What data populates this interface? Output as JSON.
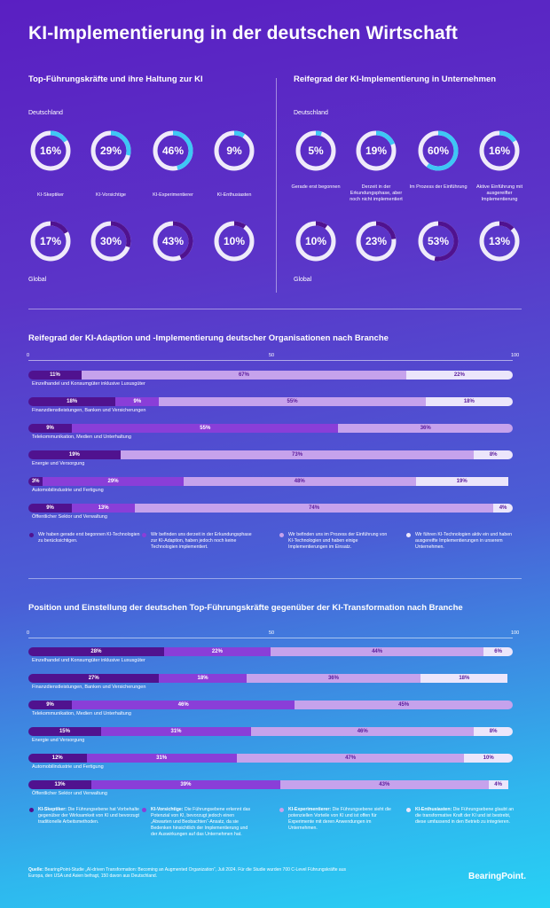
{
  "title": "KI-Implementierung in der deutschen Wirtschaft",
  "section1": {
    "heading": "Top-Führungskräfte und ihre Haltung zur KI",
    "label_de": "Deutschland",
    "label_global": "Global",
    "categories": [
      "KI-Skeptiker",
      "KI-Vorsichtige",
      "KI-Experimentierer",
      "KI-Enthusiasten"
    ],
    "deutschland": [
      16,
      29,
      46,
      9
    ],
    "deutschland_text": [
      "16%",
      "29%",
      "46%",
      "9%"
    ],
    "global": [
      17,
      30,
      43,
      10
    ],
    "global_text": [
      "17%",
      "30%",
      "43%",
      "10%"
    ]
  },
  "section2": {
    "heading": "Reifegrad der KI-Implementierung in Unternehmen",
    "label_de": "Deutschland",
    "label_global": "Global",
    "categories": [
      "Gerade erst begonnen",
      "Derzeit in der Erkundungsphase, aber noch nicht implementiert",
      "Im Prozess der Einführung",
      "Aktive Einführung mit ausgereifter Implementierung"
    ],
    "deutschland": [
      5,
      19,
      60,
      16
    ],
    "deutschland_text": [
      "5%",
      "19%",
      "60%",
      "16%"
    ],
    "global": [
      10,
      23,
      53,
      13
    ],
    "global_text": [
      "10%",
      "23%",
      "53%",
      "13%"
    ]
  },
  "chart_data": [
    {
      "type": "bar",
      "orientation": "horizontal-stacked",
      "title": "Reifegrad der KI-Adaption und -Implementierung deutscher Organisationen nach Branche",
      "axis_ticks": [
        "0",
        "50",
        "100"
      ],
      "xlim": [
        0,
        100
      ],
      "categories": [
        "Einzelhandel und Konsumgüter inklusive Luxusgüter",
        "Finanzdienstleistungen, Banken und Versicherungen",
        "Telekommunikation, Medien und Unterhaltung",
        "Energie und Versorgung",
        "Automobilindustrie und Fertigung",
        "Öffentlicher Sektor und Verwaltung"
      ],
      "series": [
        {
          "name": "Wir haben gerade erst begonnen KI-Technologien zu berücksichtigen.",
          "values": [
            11,
            18,
            9,
            19,
            3,
            9
          ],
          "labels": [
            "11%",
            "18%",
            "9%",
            "19%",
            "3%",
            "9%"
          ]
        },
        {
          "name": "Wir befinden uns derzeit in der Erkundungsphase zur KI-Adaption, haben jedoch noch keine Technologien implementiert.",
          "values": [
            0,
            9,
            55,
            0,
            29,
            13
          ],
          "labels": [
            "",
            "9%",
            "55%",
            "",
            "29%",
            "13%"
          ]
        },
        {
          "name": "Wir befinden uns im Prozess der Einführung von KI-Technologien und haben einige Implementierungen im Einsatz.",
          "values": [
            67,
            55,
            36,
            73,
            48,
            74
          ],
          "labels": [
            "67%",
            "55%",
            "36%",
            "73%",
            "48%",
            "74%"
          ]
        },
        {
          "name": "Wir führen KI-Technologien aktiv ein und haben ausgereifte Implementierungen in unserem Unternehmen.",
          "values": [
            22,
            18,
            0,
            8,
            19,
            4
          ],
          "labels": [
            "22%",
            "18%",
            "",
            "8%",
            "19%",
            "4%"
          ]
        }
      ],
      "colors": [
        "#50128f",
        "#8a3ed8",
        "#c6a2ec",
        "#ece6fb"
      ]
    },
    {
      "type": "bar",
      "orientation": "horizontal-stacked",
      "title": "Position und Einstellung der deutschen Top-Führungskräfte gegenüber der KI-Transformation nach Branche",
      "axis_ticks": [
        "0",
        "50",
        "100"
      ],
      "xlim": [
        0,
        100
      ],
      "categories": [
        "Einzelhandel und Konsumgüter inklusive Luxusgüter",
        "Finanzdienstleistungen, Banken und Versicherungen",
        "Telekommunikation, Medien und Unterhaltung",
        "Energie und Versorgung",
        "Automobilindustrie und Fertigung",
        "Öffentlicher Sektor und Verwaltung"
      ],
      "series": [
        {
          "name": "KI-Skeptiker",
          "values": [
            28,
            27,
            9,
            15,
            12,
            13
          ],
          "labels": [
            "28%",
            "27%",
            "9%",
            "15%",
            "12%",
            "13%"
          ]
        },
        {
          "name": "KI-Vorsichtige",
          "values": [
            22,
            18,
            46,
            31,
            31,
            39
          ],
          "labels": [
            "22%",
            "18%",
            "46%",
            "31%",
            "31%",
            "39%"
          ]
        },
        {
          "name": "KI-Experimentierer",
          "values": [
            44,
            36,
            45,
            46,
            47,
            43
          ],
          "labels": [
            "44%",
            "36%",
            "45%",
            "46%",
            "47%",
            "43%"
          ]
        },
        {
          "name": "KI-Enthusiasten",
          "values": [
            6,
            18,
            0,
            8,
            10,
            4
          ],
          "labels": [
            "6%",
            "18%",
            "",
            "8%",
            "10%",
            "4%"
          ]
        }
      ],
      "colors": [
        "#50128f",
        "#8a3ed8",
        "#c6a2ec",
        "#ece6fb"
      ]
    }
  ],
  "legend1": [
    {
      "text": "Wir haben gerade erst begonnen KI-Technologien zu berücksichtigen."
    },
    {
      "text": "Wir befinden uns derzeit in der Erkundungsphase zur KI-Adaption, haben jedoch noch keine Technologien implementiert."
    },
    {
      "text": "Wir befinden uns im Prozess der Einführung von KI-Technologien und haben einige Implementierungen im Einsatz."
    },
    {
      "text": "Wir führen KI-Technologien aktiv ein und haben ausgereifte Implementierungen in unserem Unternehmen."
    }
  ],
  "legend2": [
    {
      "lead": "KI-Skeptiker:",
      "text": "Die Führungsebene hat Vorbehalte gegenüber der Wirksamkeit von KI und bevorzugt traditionelle Arbeitsmethoden."
    },
    {
      "lead": "KI-Vorsichtige:",
      "text": "Die Führungsebene erkennt das Potenzial von KI, bevorzugt jedoch einen „Abwarten und Beobachten“-Ansatz, da sie Bedenken hinsichtlich der Implementierung und der Auswirkungen auf das Unternehmen hat."
    },
    {
      "lead": "KI-Experimentierer:",
      "text": "Die Führungsebene sieht die potenziellen Vorteile von KI und ist offen für Experimente mit deren Anwendungen im Unternehmen."
    },
    {
      "lead": "KI-Enthusiasten:",
      "text": "Die Führungsebene glaubt an die transformative Kraft der KI und ist bestrebt, diese umfassend in den Betrieb zu integrieren."
    }
  ],
  "footer": {
    "source_lead": "Quelle:",
    "source_text": "BearingPoint-Studie „AI-driven Transformation: Becoming an Augmented Organization“, Juli 2024. Für die Studie wurden 700 C-Level Führungskräfte aus Europa, den USA und Asien befragt, 150 davon aus Deutschland."
  },
  "logo": "BearingPoint.",
  "colors": {
    "ring_accent": "#3ec7f5",
    "ring_global": "#50128f",
    "ring_track": "#ffffff"
  }
}
